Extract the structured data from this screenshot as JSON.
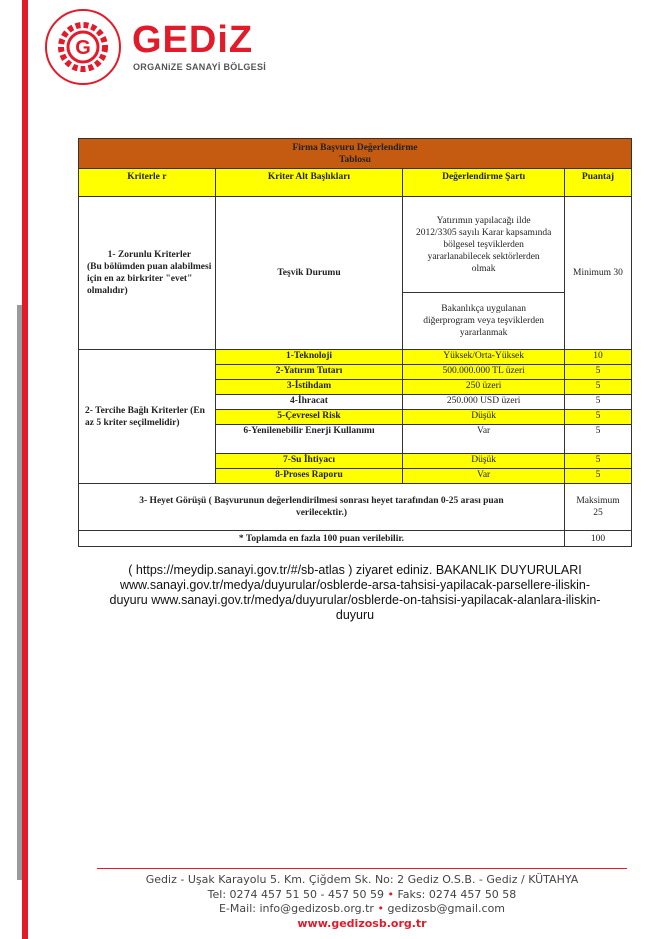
{
  "brand": {
    "name": "GEDiZ",
    "subtitle": "ORGANiZE SANAYİ BÖLGESİ",
    "seal_text": "ORGANİZE SANAYİ BÖLGESİ • GEDİZ",
    "colors": {
      "brand_red": "#e11b2a",
      "title_bg": "#c55a11",
      "highlight": "#ffff00"
    }
  },
  "table": {
    "title_line1": "Firma Başvuru Değerlendirme",
    "title_line2": "Tablosu",
    "headers": [
      "Kriterle r",
      "Kriter Alt Başlıkları",
      "Değerlendirme Şartı",
      "Puantaj"
    ],
    "section1": {
      "label": "1- Zorunlu Kriterler",
      "note": "(Bu bölümden puan alabilmesi için en az birkriter \"evet\" olmalıdır)",
      "sub": "Teşvik Durumu",
      "cond1": "Yatırımın yapılacağı ilde 2012/3305 sayılı Karar kapsamında bölgesel teşviklerden yararlanabilecek sektörlerden olmak",
      "cond2": "Bakanlıkça uygulanan diğerprogram veya teşviklerden yararlanmak",
      "score": "Minimum 30"
    },
    "section2": {
      "label": "2- Tercihe Bağlı Kriterler (En az 5 kriter seçilmelidir)",
      "rows": [
        {
          "sub": "1-Teknoloji",
          "cond": "Yüksek/Orta-Yüksek",
          "score": "10",
          "hl": true
        },
        {
          "sub": "2-Yatırım Tutarı",
          "cond": "500.000.000 TL üzeri",
          "score": "5",
          "hl": true
        },
        {
          "sub": "3-İstihdam",
          "cond": "250 üzeri",
          "score": "5",
          "hl": true
        },
        {
          "sub": "4-İhracat",
          "cond": "250.000 USD üzeri",
          "score": "5",
          "hl": false
        },
        {
          "sub": "5-Çevresel Risk",
          "cond": "Düşük",
          "score": "5",
          "hl": true
        },
        {
          "sub": "6-Yenilenebilir Enerji Kullanımı",
          "cond": "Var",
          "score": "5",
          "hl": false
        },
        {
          "sub": "7-Su İhtiyacı",
          "cond": "Düşük",
          "score": "5",
          "hl": true
        },
        {
          "sub": "8-Proses Raporu",
          "cond": "Var",
          "score": "5",
          "hl": true
        }
      ]
    },
    "section3": {
      "label": "3- Heyet Görüşü ( Başvurunun değerlendirilmesi sonrası heyet tarafından 0-25 arası puan verilecektir.)",
      "score": "Maksimum 25"
    },
    "total": {
      "label": "* Toplamda en fazla 100 puan verilebilir.",
      "score": "100"
    }
  },
  "links": {
    "line1": "( https://meydip.sanayi.gov.tr/#/sb-atlas ) ziyaret ediniz. BAKANLIK DUYURULARI",
    "line2": "www.sanayi.gov.tr/medya/duyurular/osblerde-arsa-tahsisi-yapilacak-parsellere-iliskin-",
    "line3": "duyuru www.sanayi.gov.tr/medya/duyurular/osblerde-on-tahsisi-yapilacak-alanlara-iliskin-",
    "line4": "duyuru"
  },
  "footer": {
    "address": "Gediz - Uşak Karayolu 5. Km. Çiğdem Sk. No: 2 Gediz O.S.B. - Gediz / KÜTAHYA",
    "tel": "Tel: 0274 457 51 50 - 457 50 59",
    "fax": "Faks: 0274 457 50 58",
    "email1": "E-Mail: info@gedizosb.org.tr",
    "email2": "gedizosb@gmail.com",
    "web": "www.gedizosb.org.tr"
  }
}
